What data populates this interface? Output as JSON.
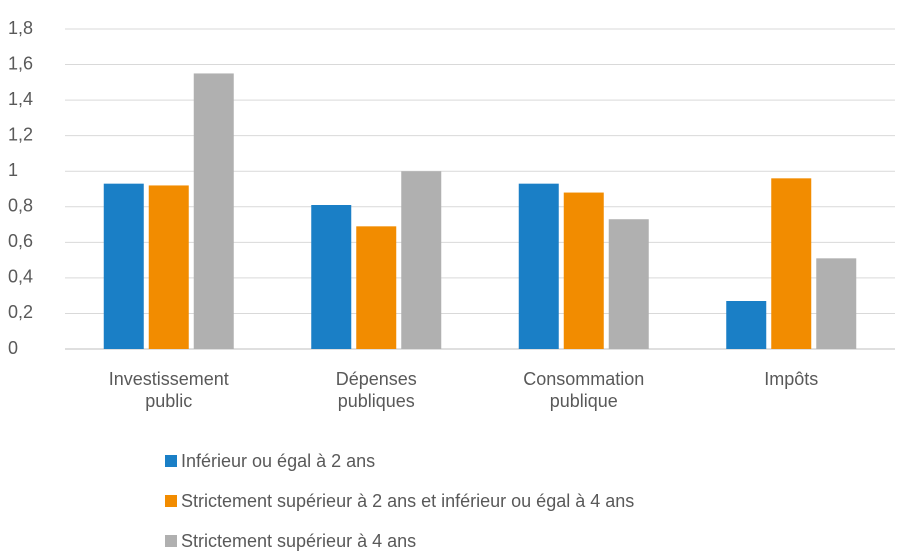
{
  "chart_data": {
    "type": "bar",
    "categories": [
      "Investissement public",
      "Dépenses publiques",
      "Consommation publique",
      "Impôts"
    ],
    "series": [
      {
        "name": "Inférieur ou égal à 2 ans",
        "color": "#1a7fc6",
        "values": [
          0.93,
          0.81,
          0.93,
          0.27
        ]
      },
      {
        "name": "Strictement supérieur à 2 ans et inférieur ou égal à 4 ans",
        "color": "#f28c00",
        "values": [
          0.92,
          0.69,
          0.88,
          0.96
        ]
      },
      {
        "name": "Strictement supérieur à 4 ans",
        "color": "#b0b0b0",
        "values": [
          1.55,
          1.0,
          0.73,
          0.51
        ]
      }
    ],
    "ylim": [
      0,
      1.8
    ],
    "yticks": [
      0,
      {
        "value": 0.2,
        "label": "0,2"
      },
      {
        "value": 0.4,
        "label": "0,4"
      },
      {
        "value": 0.6,
        "label": "0,6"
      },
      {
        "value": 0.8,
        "label": "0,8"
      },
      1,
      {
        "value": 1.2,
        "label": "1,2"
      },
      {
        "value": 1.4,
        "label": "1,4"
      },
      {
        "value": 1.6,
        "label": "1,6"
      },
      {
        "value": 1.8,
        "label": "1,8"
      }
    ],
    "grid": true,
    "legend": "bottom"
  }
}
